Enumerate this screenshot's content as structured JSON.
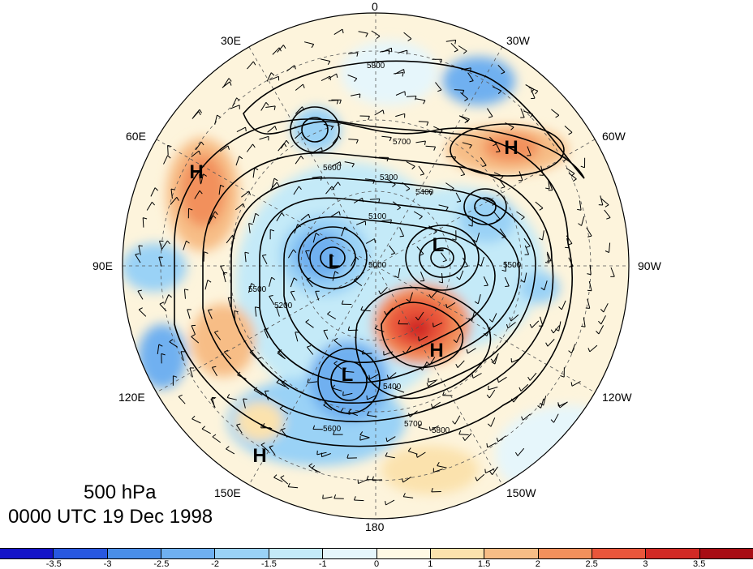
{
  "longitude_labels": {
    "lon_0": "0",
    "lon_30e": "30E",
    "lon_30w": "30W",
    "lon_60e": "60E",
    "lon_60w": "60W",
    "lon_90e": "90E",
    "lon_90w": "90W",
    "lon_120e": "120E",
    "lon_120w": "120W",
    "lon_150e": "150E",
    "lon_150w": "150W",
    "lon_180": "180"
  },
  "caption": {
    "level": "500 hPa",
    "time": "0000 UTC 19 Dec 1998"
  },
  "pressure_systems": [
    "H",
    "H",
    "H",
    "H",
    "L",
    "L",
    "L"
  ],
  "contour_labels": [
    "5800",
    "5800",
    "5700",
    "5700",
    "5600",
    "5600",
    "5500",
    "5500",
    "5400",
    "5400",
    "5300",
    "5200",
    "5100",
    "5000"
  ],
  "colorbar": {
    "ticks": [
      "-3.5",
      "-3",
      "-2.5",
      "-2",
      "-1.5",
      "-1",
      "0",
      "1",
      "1.5",
      "2",
      "2.5",
      "3",
      "3.5"
    ],
    "colors": [
      "#1414c8",
      "#2858e0",
      "#4a8ee8",
      "#6fb0f0",
      "#9ad2f6",
      "#c4eaf8",
      "#e6f6fb",
      "#fff9e4",
      "#fbe2ad",
      "#f7bd86",
      "#f2905c",
      "#e9563b",
      "#d22a25",
      "#a80d14"
    ]
  }
}
